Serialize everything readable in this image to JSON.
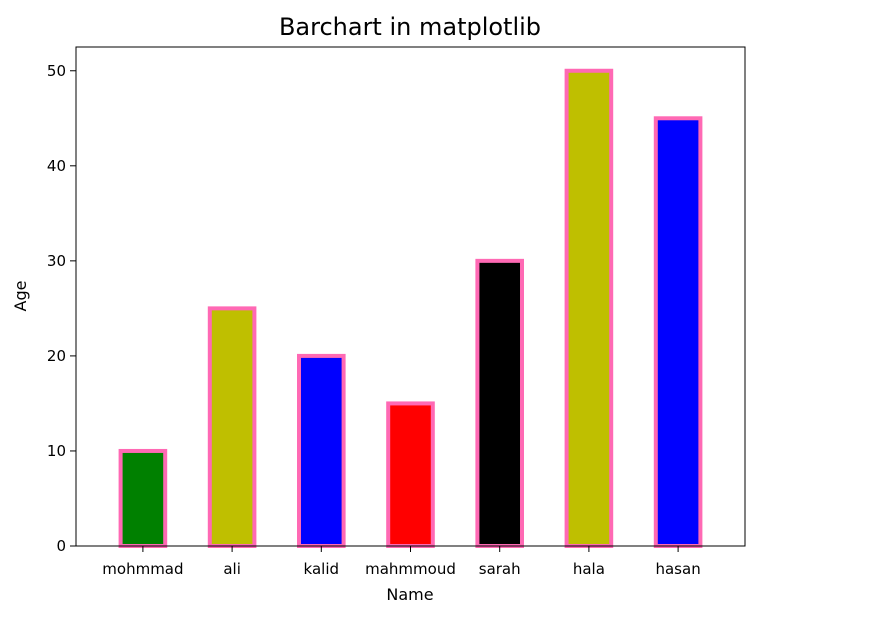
{
  "chart_data": {
    "type": "bar",
    "title": "Barchart in matplotlib",
    "xlabel": "Name",
    "ylabel": "Age",
    "categories": [
      "mohmmad",
      "ali",
      "kalid",
      "mahmmoud",
      "sarah",
      "hala",
      "hasan"
    ],
    "values": [
      10,
      25,
      20,
      15,
      30,
      50,
      45
    ],
    "bar_colors": [
      "#008000",
      "#bfbf00",
      "#0000ff",
      "#ff0000",
      "#000000",
      "#bfbf00",
      "#0000ff"
    ],
    "bar_edge_color": "#ff69b4",
    "ylim": [
      0,
      52.5
    ],
    "yticks": [
      0,
      10,
      20,
      30,
      40,
      50
    ],
    "grid": false,
    "legend": "none"
  }
}
